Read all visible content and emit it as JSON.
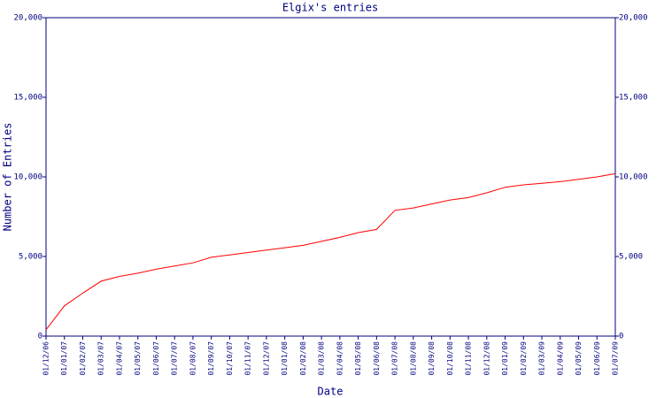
{
  "chart_data": {
    "type": "line",
    "title": "Elgix's entries",
    "x_label": "Date",
    "y_label": "Number of Entries",
    "categories": [
      "01/12/06",
      "01/01/07",
      "01/02/07",
      "01/03/07",
      "01/04/07",
      "01/05/07",
      "01/06/07",
      "01/07/07",
      "01/08/07",
      "01/09/07",
      "01/10/07",
      "01/11/07",
      "01/12/07",
      "01/01/08",
      "01/02/08",
      "01/03/08",
      "01/04/08",
      "01/05/08",
      "01/06/08",
      "01/07/08",
      "01/08/08",
      "01/09/08",
      "01/10/08",
      "01/11/08",
      "01/12/08",
      "01/01/09",
      "01/02/09",
      "01/03/09",
      "01/04/09",
      "01/05/09",
      "01/06/09",
      "01/07/09"
    ],
    "series": [
      {
        "name": "Entries",
        "color": "#ff0000",
        "values": [
          400,
          1900,
          2700,
          3450,
          3750,
          3950,
          4200,
          4400,
          4600,
          4950,
          5100,
          5250,
          5400,
          5550,
          5700,
          5950,
          6200,
          6500,
          6700,
          7900,
          8050,
          8300,
          8550,
          8700,
          9000,
          9350,
          9500,
          9600,
          9700,
          9850,
          10000,
          10200
        ]
      }
    ],
    "ylim": [
      0,
      20000
    ],
    "yticks": [
      0,
      {
        "value": 5000,
        "label": "5,000"
      },
      {
        "value": 10000,
        "label": "10,000"
      },
      {
        "value": 15000,
        "label": "15,000"
      },
      {
        "value": 20000,
        "label": "20,000"
      }
    ],
    "axis_color": "#000080"
  }
}
